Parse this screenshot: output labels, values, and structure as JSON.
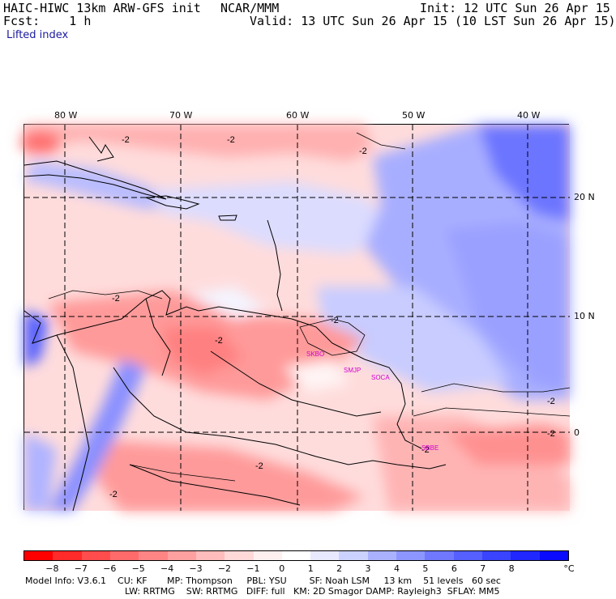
{
  "header": {
    "model": "HAIC-HIWC 13km ARW-GFS init",
    "center": "NCAR/MMM",
    "init": "Init: 12 UTC Sun 26 Apr 15",
    "fcst": "Fcst:    1 h",
    "valid": "Valid: 13 UTC Sun 26 Apr 15 (10 LST Sun 26 Apr 15)",
    "field": "Lifted index"
  },
  "map": {
    "lon_labels": [
      "80 W",
      "70 W",
      "60 W",
      "50 W",
      "40 W"
    ],
    "lat_labels": [
      "20 N",
      "10 N",
      "0"
    ],
    "contour_labels": [
      "-2",
      "-2",
      "-2",
      "-2",
      "-2",
      "-2",
      "-2",
      "-2",
      "-2",
      "-2",
      "-2"
    ],
    "stations": [
      "SKBO",
      "SMJP",
      "SOCA",
      "SBBE"
    ]
  },
  "colorbar": {
    "colors": [
      "#ff0000",
      "#ff2a2a",
      "#ff4d4d",
      "#ff6b6b",
      "#ff8585",
      "#ffa0a0",
      "#ffbcbc",
      "#ffd8d8",
      "#fff0f0",
      "#ffffff",
      "#e8e8ff",
      "#ccd2ff",
      "#aab2ff",
      "#8d96ff",
      "#7078ff",
      "#5560ff",
      "#3a44ff",
      "#2028ff",
      "#0a0aff"
    ],
    "ticks": [
      "−8",
      "−7",
      "−6",
      "−5",
      "−4",
      "−3",
      "−2",
      "−1",
      "0",
      "1",
      "2",
      "3",
      "4",
      "5",
      "6",
      "7",
      "8"
    ],
    "unit": "°C"
  },
  "footer": {
    "line1": "Model Info: V3.6.1    CU: KF       MP: Thompson     PBL: YSU        SF: Noah LSM     13 km    51 levels   60 sec",
    "line2": "LW: RRTMG    SW: RRTMG   DIFF: full   KM: 2D Smagor DAMP: Rayleigh3  SFLAY: MM5"
  }
}
